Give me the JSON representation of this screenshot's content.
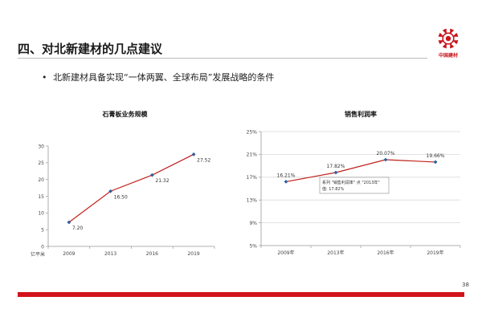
{
  "header": {
    "title": "四、对北新建材的几点建议",
    "logo_text": "中国建材"
  },
  "bullet": "北新建材具备实现“一体两翼、全球布局”发展战略的条件",
  "colors": {
    "line": "#c0201c",
    "marker": "#2f5f9e",
    "accent": "#d3131c"
  },
  "chart_data": [
    {
      "type": "line",
      "title": "石膏板业务规模",
      "ylabel": "亿平米",
      "categories": [
        "2009",
        "2013",
        "2016",
        "2019"
      ],
      "series": [
        {
          "values": [
            7.2,
            16.5,
            21.32,
            27.52
          ],
          "labels": [
            "7.20",
            "16.50",
            "21.32",
            "27.52"
          ]
        }
      ],
      "ylim": [
        0,
        30
      ],
      "yticks": [
        "0",
        "5",
        "10",
        "15",
        "20",
        "25",
        "30"
      ],
      "grid": false
    },
    {
      "type": "line",
      "title": "销售利润率",
      "categories": [
        "2009年",
        "2013年",
        "2016年",
        "2019年"
      ],
      "series": [
        {
          "values": [
            16.21,
            17.82,
            20.07,
            19.66
          ],
          "labels": [
            "16.21%",
            "17.82%",
            "20.07%",
            "19.66%"
          ]
        }
      ],
      "ylim": [
        5,
        25
      ],
      "yticks": [
        "5%",
        "9%",
        "13%",
        "17%",
        "21%",
        "25%"
      ],
      "grid": true,
      "tooltip": {
        "line1": "系列 \"销售利润率\" 点 \"2013年\"",
        "line2": "值: 17.82%"
      }
    }
  ],
  "page_number": "38"
}
